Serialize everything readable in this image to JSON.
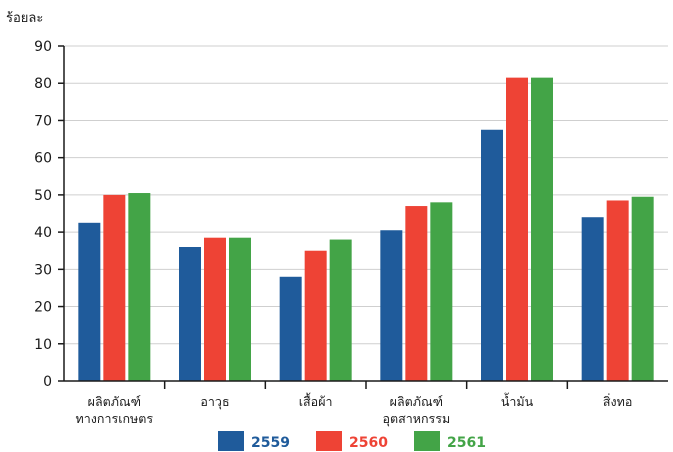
{
  "chart_data": {
    "type": "bar",
    "ylabel": "ร้อยละ",
    "ylim": [
      0,
      90
    ],
    "yticks": [
      0,
      10,
      20,
      30,
      40,
      50,
      60,
      70,
      80,
      90
    ],
    "grid": true,
    "legend_position": "bottom",
    "categories": [
      [
        "ผลิตภัณฑ์",
        "ทางการเกษตร"
      ],
      [
        "อาวุธ"
      ],
      [
        "เสื้อผ้า"
      ],
      [
        "ผลิตภัณฑ์",
        "อุตสาหกรรม"
      ],
      [
        "น้ำมัน"
      ],
      [
        "สิ่งทอ"
      ]
    ],
    "series": [
      {
        "name": "2559",
        "color": "#1f5b9b",
        "values": [
          42.5,
          36,
          28,
          40.5,
          67.5,
          44
        ]
      },
      {
        "name": "2560",
        "color": "#ee4335",
        "values": [
          50,
          38.5,
          35,
          47,
          81.5,
          48.5
        ]
      },
      {
        "name": "2561",
        "color": "#43a447",
        "values": [
          50.5,
          38.5,
          38,
          48,
          81.5,
          49.5
        ]
      }
    ]
  }
}
